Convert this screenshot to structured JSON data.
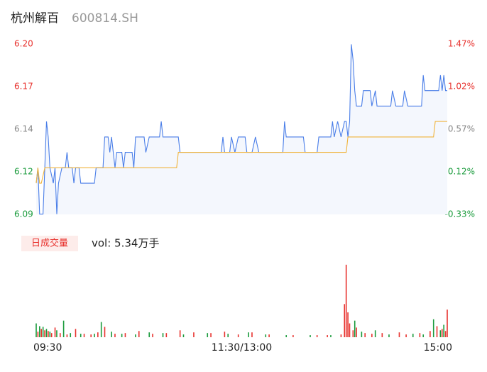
{
  "chart_data": {
    "type": "line",
    "title": "杭州解百",
    "subtitle": "600814.SH",
    "xlim": [
      0,
      240
    ],
    "xticks": [
      {
        "value": 0,
        "label": "09:30"
      },
      {
        "value": 120,
        "label": "11:30/13:00"
      },
      {
        "value": 240,
        "label": "15:00"
      }
    ],
    "ylim": [
      6.0898,
      6.2002
    ],
    "yticks": [
      {
        "value": 6.0898,
        "label": "6.09"
      },
      {
        "value": 6.1174,
        "label": "6.12"
      },
      {
        "value": 6.145,
        "label": "6.14"
      },
      {
        "value": 6.1726,
        "label": "6.17"
      },
      {
        "value": 6.2002,
        "label": "6.20"
      }
    ],
    "ytick_colors": [
      "#1a9b3c",
      "#1a9b3c",
      "#888888",
      "#e8332f",
      "#e8332f"
    ],
    "y2lim": [
      -0.33,
      1.47
    ],
    "y2ticks": [
      {
        "value": -0.33,
        "label": "-0.33%"
      },
      {
        "value": 0.12,
        "label": "0.12%"
      },
      {
        "value": 0.57,
        "label": "0.57%"
      },
      {
        "value": 1.02,
        "label": "1.02%"
      },
      {
        "value": 1.47,
        "label": "1.47%"
      }
    ],
    "y2tick_colors": [
      "#1a9b3c",
      "#1a9b3c",
      "#888888",
      "#e8332f",
      "#e8332f"
    ],
    "series": [
      {
        "name": "price",
        "color": "#4a7ee8",
        "x": [
          0,
          1,
          2,
          4,
          5,
          6,
          7,
          8,
          10,
          11,
          12,
          13,
          15,
          17,
          18,
          19,
          21,
          22,
          23,
          25,
          26,
          34,
          35,
          39,
          40,
          42,
          43,
          44,
          46,
          47,
          50,
          51,
          52,
          56,
          57,
          58,
          63,
          64,
          66,
          72,
          73,
          74,
          83,
          84,
          108,
          109,
          110,
          113,
          114,
          116,
          118,
          122,
          123,
          126,
          128,
          130,
          144,
          145,
          146,
          156,
          157,
          164,
          165,
          172,
          173,
          174,
          176,
          178,
          180,
          181,
          182,
          183,
          184,
          185,
          186,
          187,
          190,
          191,
          195,
          196,
          198,
          199,
          207,
          208,
          210,
          214,
          215,
          217,
          225,
          226,
          227,
          235,
          236,
          237,
          238,
          239,
          240
        ],
        "values": [
          6.11,
          6.12,
          6.09,
          6.09,
          6.12,
          6.15,
          6.14,
          6.12,
          6.11,
          6.12,
          6.09,
          6.11,
          6.12,
          6.12,
          6.13,
          6.12,
          6.12,
          6.11,
          6.12,
          6.12,
          6.11,
          6.11,
          6.12,
          6.12,
          6.14,
          6.14,
          6.13,
          6.14,
          6.12,
          6.13,
          6.13,
          6.12,
          6.13,
          6.13,
          6.12,
          6.14,
          6.14,
          6.13,
          6.14,
          6.14,
          6.15,
          6.14,
          6.14,
          6.13,
          6.13,
          6.14,
          6.13,
          6.13,
          6.14,
          6.13,
          6.14,
          6.14,
          6.13,
          6.13,
          6.14,
          6.13,
          6.13,
          6.15,
          6.14,
          6.14,
          6.13,
          6.13,
          6.14,
          6.14,
          6.15,
          6.14,
          6.15,
          6.14,
          6.15,
          6.15,
          6.14,
          6.15,
          6.2,
          6.19,
          6.17,
          6.16,
          6.16,
          6.17,
          6.17,
          6.16,
          6.17,
          6.16,
          6.16,
          6.17,
          6.16,
          6.16,
          6.17,
          6.16,
          6.16,
          6.18,
          6.17,
          6.17,
          6.18,
          6.17,
          6.18,
          6.17,
          6.17
        ]
      },
      {
        "name": "average",
        "color": "#f0b43c",
        "x": [
          0,
          1,
          2,
          3,
          5,
          82,
          83,
          181,
          182,
          232,
          233,
          240
        ],
        "values": [
          6.11,
          6.12,
          6.11,
          6.11,
          6.12,
          6.12,
          6.13,
          6.13,
          6.14,
          6.14,
          6.15,
          6.15
        ]
      }
    ],
    "volume": {
      "label": "日成交量",
      "summary": "vol: 5.34万手",
      "ylim": [
        0,
        110
      ],
      "series": [
        {
          "name": "up",
          "color": "#e8332f",
          "x": [
            1,
            3,
            5,
            7,
            9,
            11,
            14,
            18,
            23,
            28,
            32,
            36,
            40,
            46,
            52,
            60,
            68,
            76,
            84,
            92,
            102,
            110,
            118,
            126,
            136,
            150,
            164,
            170,
            178,
            180,
            181,
            182,
            183,
            185,
            187,
            192,
            196,
            202,
            212,
            216,
            224,
            230,
            234,
            237,
            239,
            240
          ],
          "values": [
            8,
            12,
            10,
            9,
            6,
            14,
            6,
            4,
            12,
            5,
            4,
            7,
            15,
            5,
            6,
            9,
            5,
            6,
            10,
            7,
            6,
            8,
            4,
            7,
            4,
            3,
            3,
            3,
            4,
            48,
            105,
            36,
            20,
            10,
            14,
            6,
            5,
            6,
            7,
            4,
            6,
            9,
            16,
            12,
            9,
            40
          ]
        },
        {
          "name": "down",
          "color": "#1a9b3c",
          "x": [
            0,
            2,
            4,
            6,
            8,
            12,
            16,
            20,
            26,
            34,
            38,
            44,
            50,
            58,
            66,
            74,
            86,
            100,
            112,
            124,
            134,
            146,
            160,
            172,
            186,
            190,
            198,
            206,
            220,
            226,
            232,
            236,
            238
          ],
          "values": [
            20,
            16,
            15,
            12,
            8,
            10,
            24,
            6,
            5,
            5,
            22,
            8,
            5,
            4,
            7,
            6,
            4,
            6,
            5,
            7,
            4,
            3,
            3,
            3,
            24,
            8,
            10,
            4,
            5,
            4,
            26,
            10,
            18
          ]
        }
      ]
    }
  }
}
